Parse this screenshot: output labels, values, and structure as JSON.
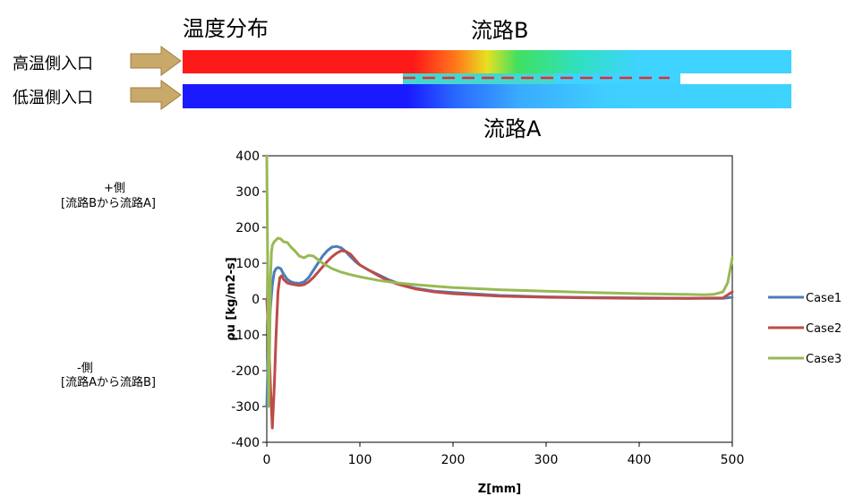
{
  "diagram": {
    "title": "温度分布",
    "channel_b_label": "流路B",
    "channel_a_label": "流路A",
    "inlet_hot_label": "高温側入口",
    "inlet_cold_label": "低温側入口",
    "colors": {
      "hot": "#ff1a1a",
      "cold": "#1a1aff",
      "mixed": "#3fd3ff",
      "arrow": "#c8a96a",
      "dashed_line": "#e03030"
    }
  },
  "annotations": {
    "plus_side": "+側",
    "plus_side_desc": "[流路Bから流路A]",
    "minus_side": "-側",
    "minus_side_desc": "[流路Aから流路B]"
  },
  "chart_data": {
    "type": "line",
    "title": "",
    "xlabel": "Z[mm]",
    "ylabel": "ρu [kg/m2-s]",
    "xlim": [
      0,
      500
    ],
    "ylim": [
      -400,
      400
    ],
    "xticks": [
      0,
      100,
      200,
      300,
      400,
      500
    ],
    "yticks": [
      400,
      300,
      200,
      100,
      0,
      -100,
      -200,
      -300,
      -400
    ],
    "grid": false,
    "legend_position": "right",
    "series": [
      {
        "name": "Case1",
        "color": "#4a7ebb",
        "x": [
          0,
          2,
          4,
          6,
          8,
          10,
          12,
          15,
          18,
          22,
          26,
          30,
          35,
          40,
          45,
          50,
          55,
          60,
          65,
          70,
          75,
          80,
          85,
          90,
          95,
          100,
          110,
          120,
          130,
          140,
          150,
          160,
          180,
          200,
          250,
          300,
          350,
          400,
          450,
          490,
          500
        ],
        "y": [
          -300,
          -100,
          -20,
          40,
          75,
          85,
          88,
          85,
          70,
          55,
          48,
          45,
          44,
          48,
          60,
          80,
          100,
          120,
          135,
          145,
          147,
          143,
          132,
          118,
          105,
          95,
          80,
          68,
          55,
          45,
          36,
          30,
          22,
          18,
          10,
          6,
          4,
          3,
          2,
          2,
          5
        ]
      },
      {
        "name": "Case2",
        "color": "#be4b48",
        "x": [
          0,
          2,
          4,
          6,
          8,
          10,
          12,
          14,
          16,
          18,
          22,
          26,
          30,
          35,
          40,
          45,
          50,
          55,
          60,
          65,
          70,
          75,
          80,
          85,
          90,
          95,
          100,
          110,
          120,
          130,
          140,
          150,
          160,
          180,
          200,
          250,
          300,
          350,
          400,
          450,
          490,
          500
        ],
        "y": [
          0,
          -100,
          -250,
          -360,
          -250,
          -100,
          20,
          60,
          65,
          55,
          45,
          42,
          40,
          38,
          40,
          48,
          60,
          75,
          90,
          105,
          118,
          128,
          135,
          133,
          125,
          110,
          95,
          80,
          65,
          52,
          42,
          35,
          28,
          20,
          15,
          8,
          5,
          3,
          2,
          2,
          3,
          20
        ]
      },
      {
        "name": "Case3",
        "color": "#98b954",
        "x": [
          0,
          1,
          2,
          3,
          4,
          5,
          6,
          8,
          10,
          12,
          15,
          18,
          22,
          26,
          30,
          35,
          40,
          45,
          50,
          55,
          60,
          70,
          80,
          90,
          100,
          120,
          140,
          160,
          180,
          200,
          250,
          300,
          350,
          400,
          450,
          470,
          480,
          490,
          495,
          500
        ],
        "y": [
          400,
          100,
          -300,
          -150,
          60,
          130,
          150,
          160,
          165,
          170,
          168,
          160,
          158,
          145,
          135,
          120,
          115,
          122,
          120,
          110,
          100,
          85,
          75,
          68,
          62,
          52,
          45,
          40,
          36,
          32,
          26,
          22,
          18,
          15,
          13,
          12,
          13,
          20,
          45,
          115
        ]
      }
    ]
  }
}
